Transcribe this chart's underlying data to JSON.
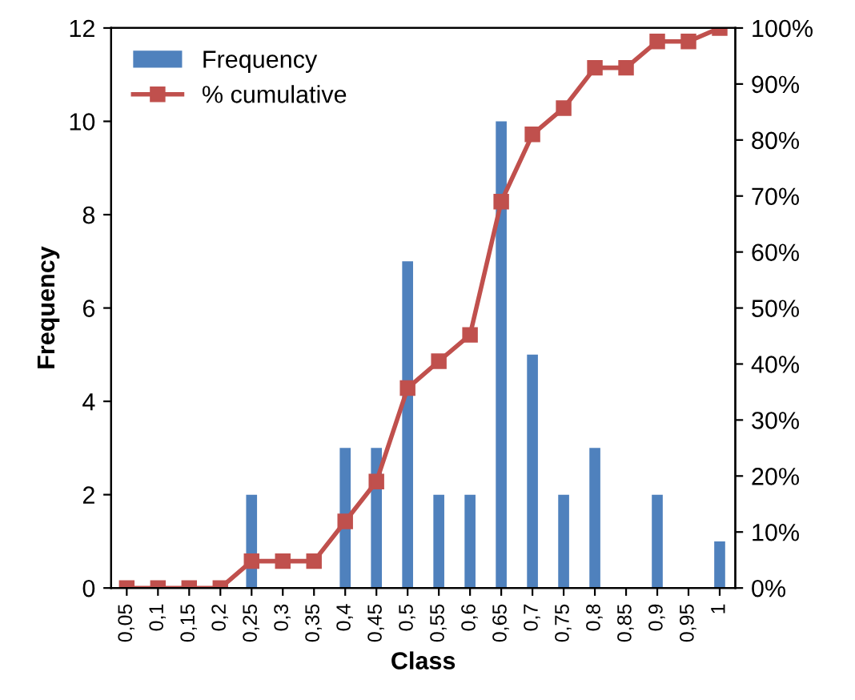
{
  "chart_data": {
    "type": "bar",
    "xlabel": "Class",
    "ylabel": "Frequency",
    "categories": [
      "0,05",
      "0,1",
      "0,15",
      "0,2",
      "0,25",
      "0,3",
      "0,35",
      "0,4",
      "0,45",
      "0,5",
      "0,55",
      "0,6",
      "0,65",
      "0,7",
      "0,75",
      "0,8",
      "0,85",
      "0,9",
      "0,95",
      "1"
    ],
    "series": [
      {
        "name": "Frequency",
        "color": "#4f81bd",
        "values": [
          0,
          0,
          0,
          0,
          2,
          0,
          0,
          3,
          3,
          7,
          2,
          2,
          10,
          5,
          2,
          3,
          0,
          2,
          0,
          1
        ]
      },
      {
        "name": "% cumulative",
        "type": "line",
        "axis": "y2",
        "color": "#c0504d",
        "marker": "square",
        "values": [
          0,
          0,
          0,
          0,
          4.8,
          4.8,
          4.8,
          11.9,
          19.0,
          35.7,
          40.5,
          45.2,
          69.0,
          81.0,
          85.7,
          92.9,
          92.9,
          97.6,
          97.6,
          100
        ]
      }
    ],
    "ylim": [
      0,
      12
    ],
    "yticks": [
      0,
      2,
      4,
      6,
      8,
      10,
      12
    ],
    "y2lim": [
      0,
      100
    ],
    "y2ticks": [
      {
        "value": 0,
        "label": "0%"
      },
      {
        "value": 10,
        "label": "10%"
      },
      {
        "value": 20,
        "label": "20%"
      },
      {
        "value": 30,
        "label": "30%"
      },
      {
        "value": 40,
        "label": "40%"
      },
      {
        "value": 50,
        "label": "50%"
      },
      {
        "value": 60,
        "label": "60%"
      },
      {
        "value": 70,
        "label": "70%"
      },
      {
        "value": 80,
        "label": "80%"
      },
      {
        "value": 90,
        "label": "90%"
      },
      {
        "value": 100,
        "label": "100%"
      }
    ],
    "legend": "top left",
    "grid": false
  }
}
